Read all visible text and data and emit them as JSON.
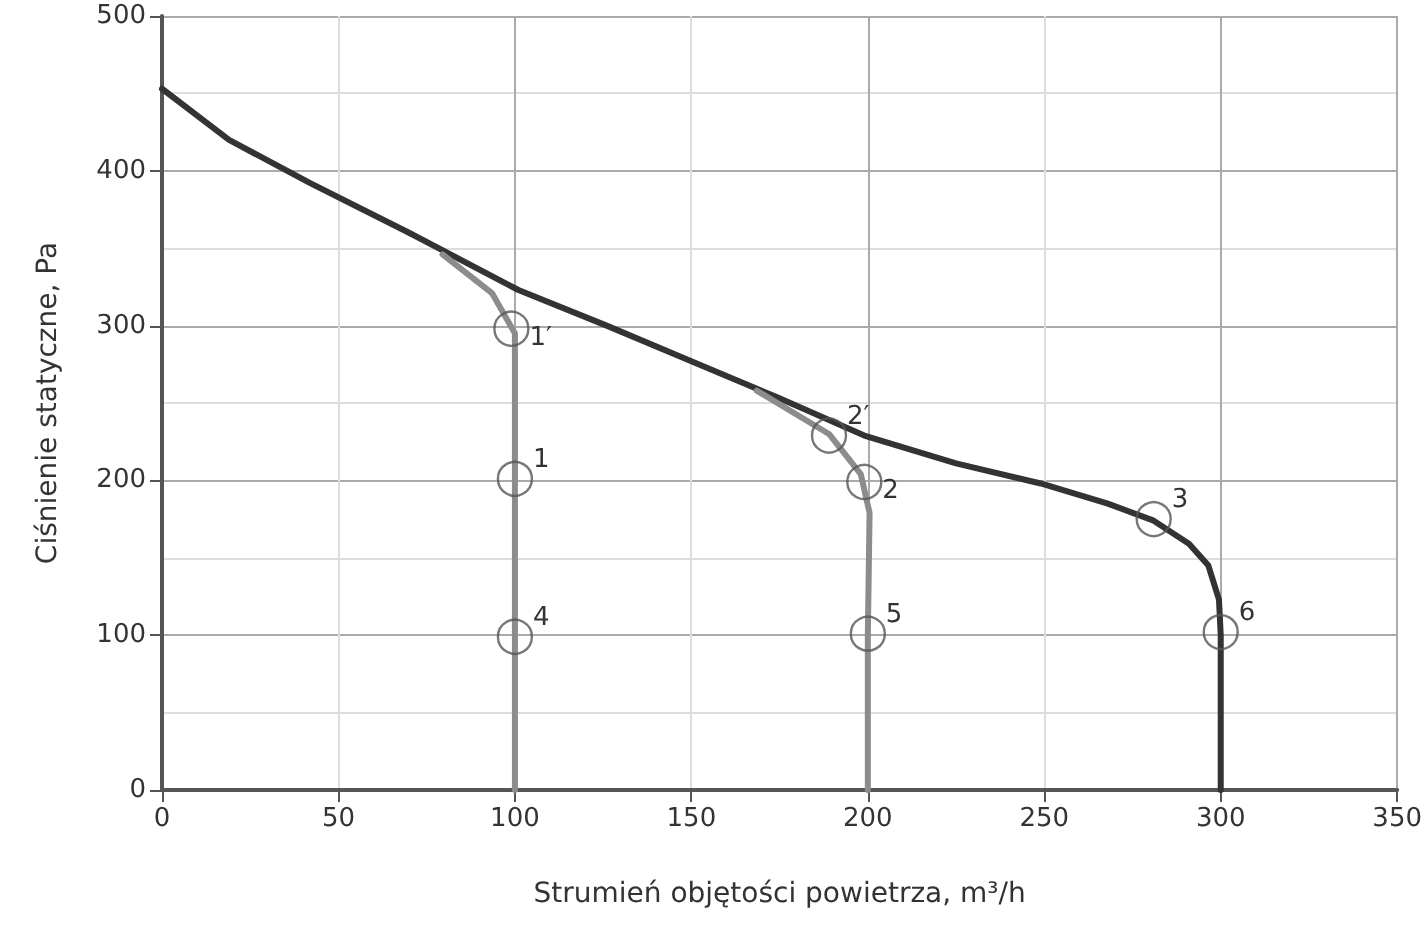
{
  "chart_data": {
    "type": "line",
    "xlabel": "Strumień objętości powietrza, m³/h",
    "ylabel": "Ciśnienie statyczne, Pa",
    "xlim": [
      0,
      350
    ],
    "xticks": [
      0,
      50,
      100,
      150,
      200,
      250,
      300,
      350
    ],
    "ylim": [
      0,
      500
    ],
    "yticks": [
      0,
      100,
      200,
      300,
      400,
      500
    ],
    "grid": true,
    "marker": "none",
    "series": [
      {
        "color": "#333333",
        "x": [
          0,
          19,
          42,
          70,
          101,
          126,
          150,
          174,
          199,
          225,
          249,
          268,
          281,
          291,
          296.5,
          299.5,
          300,
          300
        ],
        "values": [
          453,
          420,
          392,
          360,
          323,
          300,
          277,
          254,
          229,
          211,
          198,
          185,
          174,
          159,
          145,
          123,
          100,
          0
        ]
      },
      {
        "color": "#8c8c8c",
        "x": [
          79.5,
          93.5,
          100,
          100,
          100,
          100
        ],
        "values": [
          346,
          321,
          295,
          200,
          100,
          0
        ]
      },
      {
        "color": "#8c8c8c",
        "x": [
          168.5,
          189,
          198,
          200.5,
          200,
          200
        ],
        "values": [
          258,
          230,
          204,
          179,
          100,
          0
        ]
      },
      {
        "type": "scatter",
        "marker": "circle",
        "color": "#555555",
        "x": [
          99,
          100,
          100,
          189,
          199,
          200,
          281,
          300
        ],
        "values": [
          298,
          201,
          99,
          229,
          199,
          101,
          175,
          102
        ]
      }
    ],
    "annotations": [
      {
        "text": "1′",
        "x": 99,
        "y": 298
      },
      {
        "text": "1",
        "x": 100,
        "y": 201
      },
      {
        "text": "4",
        "x": 100,
        "y": 99
      },
      {
        "text": "2′",
        "x": 189,
        "y": 229
      },
      {
        "text": "2",
        "x": 199,
        "y": 199
      },
      {
        "text": "5",
        "x": 200,
        "y": 101
      },
      {
        "text": "3",
        "x": 281,
        "y": 175
      },
      {
        "text": "6",
        "x": 300,
        "y": 102
      }
    ]
  }
}
